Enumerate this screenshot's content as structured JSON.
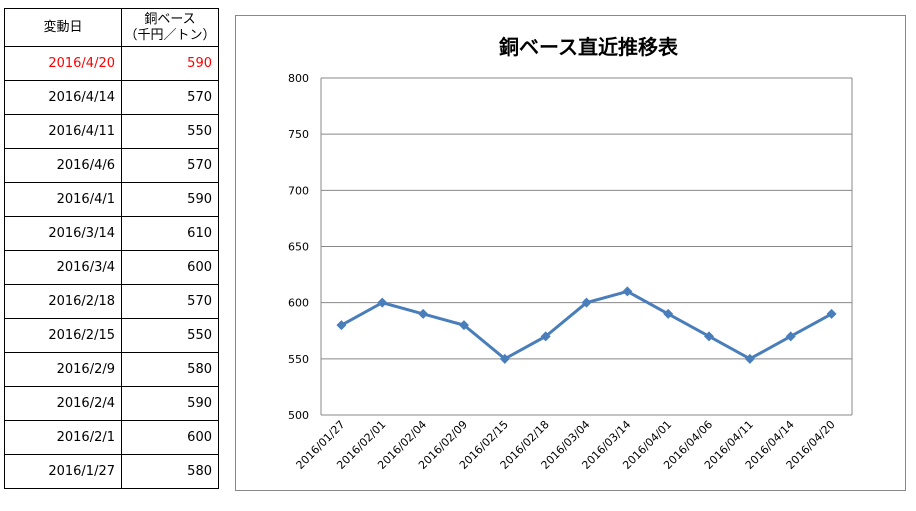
{
  "table": {
    "header": {
      "date": "変動日",
      "value_line1": "銅ベース",
      "value_line2": "（千円／トン）"
    },
    "highlight_color": "#ff0000",
    "rows": [
      {
        "date": "2016/4/20",
        "value": "590",
        "highlight": true
      },
      {
        "date": "2016/4/14",
        "value": "570"
      },
      {
        "date": "2016/4/11",
        "value": "550"
      },
      {
        "date": "2016/4/6",
        "value": "570"
      },
      {
        "date": "2016/4/1",
        "value": "590"
      },
      {
        "date": "2016/3/14",
        "value": "610"
      },
      {
        "date": "2016/3/4",
        "value": "600"
      },
      {
        "date": "2016/2/18",
        "value": "570"
      },
      {
        "date": "2016/2/15",
        "value": "550"
      },
      {
        "date": "2016/2/9",
        "value": "580"
      },
      {
        "date": "2016/2/4",
        "value": "590"
      },
      {
        "date": "2016/2/1",
        "value": "600"
      },
      {
        "date": "2016/1/27",
        "value": "580"
      }
    ]
  },
  "chart_data": {
    "type": "line",
    "title": "銅ベース直近推移表",
    "categories": [
      "2016/01/27",
      "2016/02/01",
      "2016/02/04",
      "2016/02/09",
      "2016/02/15",
      "2016/02/18",
      "2016/03/04",
      "2016/03/14",
      "2016/04/01",
      "2016/04/06",
      "2016/04/11",
      "2016/04/14",
      "2016/04/20"
    ],
    "values": [
      580,
      600,
      590,
      580,
      550,
      570,
      600,
      610,
      590,
      570,
      550,
      570,
      590
    ],
    "ylim": [
      500,
      800
    ],
    "yticks": [
      500,
      550,
      600,
      650,
      700,
      750,
      800
    ],
    "grid": true,
    "legend": "none",
    "marker": "diamond",
    "line_color": "#4a7ebb"
  }
}
